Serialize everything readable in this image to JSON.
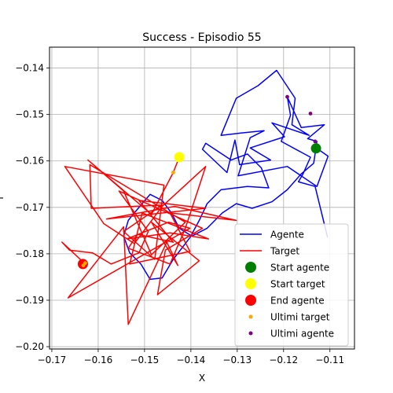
{
  "chart_data": {
    "type": "line",
    "title": "Success - Episodio 55",
    "xlabel": "X",
    "ylabel": "Y",
    "xlim": [
      -0.1705,
      -0.1047
    ],
    "ylim": [
      -0.2005,
      -0.1355
    ],
    "xticks": [
      -0.17,
      -0.16,
      -0.15,
      -0.14,
      -0.13,
      -0.12,
      -0.11
    ],
    "yticks": [
      -0.14,
      -0.15,
      -0.16,
      -0.17,
      -0.18,
      -0.19,
      -0.2
    ],
    "xtick_labels": [
      "−0.17",
      "−0.16",
      "−0.15",
      "−0.14",
      "−0.13",
      "−0.12",
      "−0.11"
    ],
    "ytick_labels": [
      "−0.14",
      "−0.15",
      "−0.16",
      "−0.17",
      "−0.18",
      "−0.19",
      "−0.20"
    ],
    "grid": true,
    "legend_position": "lower right",
    "series": [
      {
        "name": "Agente",
        "kind": "line",
        "color": "#0000ff",
        "points": [
          [
            -0.1128,
            -0.1573
          ],
          [
            -0.1104,
            -0.159
          ],
          [
            -0.1128,
            -0.1655
          ],
          [
            -0.1192,
            -0.1612
          ],
          [
            -0.1298,
            -0.1632
          ],
          [
            -0.1272,
            -0.155
          ],
          [
            -0.1242,
            -0.1535
          ],
          [
            -0.1292,
            -0.154
          ],
          [
            -0.1335,
            -0.1545
          ],
          [
            -0.1302,
            -0.1465
          ],
          [
            -0.1255,
            -0.1438
          ],
          [
            -0.1215,
            -0.1405
          ],
          [
            -0.1175,
            -0.1465
          ],
          [
            -0.1182,
            -0.1522
          ],
          [
            -0.1145,
            -0.1545
          ],
          [
            -0.1225,
            -0.1518
          ],
          [
            -0.1198,
            -0.1548
          ],
          [
            -0.1272,
            -0.1572
          ],
          [
            -0.1228,
            -0.1598
          ],
          [
            -0.1295,
            -0.1608
          ],
          [
            -0.1305,
            -0.1555
          ],
          [
            -0.1322,
            -0.1625
          ],
          [
            -0.1375,
            -0.1575
          ],
          [
            -0.1368,
            -0.1562
          ],
          [
            -0.1313,
            -0.1598
          ],
          [
            -0.1278,
            -0.1585
          ],
          [
            -0.1248,
            -0.1615
          ],
          [
            -0.1232,
            -0.1658
          ],
          [
            -0.1278,
            -0.1655
          ],
          [
            -0.1335,
            -0.1662
          ],
          [
            -0.1365,
            -0.1692
          ],
          [
            -0.1382,
            -0.1728
          ],
          [
            -0.1402,
            -0.1765
          ],
          [
            -0.1438,
            -0.1812
          ],
          [
            -0.1462,
            -0.1852
          ],
          [
            -0.1488,
            -0.1855
          ],
          [
            -0.1508,
            -0.1822
          ],
          [
            -0.1532,
            -0.1798
          ],
          [
            -0.1545,
            -0.1762
          ],
          [
            -0.1535,
            -0.1728
          ],
          [
            -0.1522,
            -0.1712
          ],
          [
            -0.1505,
            -0.1692
          ],
          [
            -0.1488,
            -0.1672
          ],
          [
            -0.1462,
            -0.1685
          ],
          [
            -0.1442,
            -0.1712
          ],
          [
            -0.1425,
            -0.1745
          ],
          [
            -0.1398,
            -0.1762
          ],
          [
            -0.1365,
            -0.1745
          ],
          [
            -0.1332,
            -0.1712
          ],
          [
            -0.1302,
            -0.1692
          ],
          [
            -0.1268,
            -0.1702
          ],
          [
            -0.1225,
            -0.1688
          ],
          [
            -0.1192,
            -0.1662
          ],
          [
            -0.1162,
            -0.1628
          ],
          [
            -0.1135,
            -0.1605
          ],
          [
            -0.1128,
            -0.1558
          ],
          [
            -0.1148,
            -0.1552
          ],
          [
            -0.1112,
            -0.1522
          ],
          [
            -0.1162,
            -0.1528
          ],
          [
            -0.1192,
            -0.1462
          ],
          [
            -0.1185,
            -0.1502
          ],
          [
            -0.1205,
            -0.1558
          ],
          [
            -0.1142,
            -0.1592
          ],
          [
            -0.1158,
            -0.1628
          ],
          [
            -0.1168,
            -0.1645
          ],
          [
            -0.1132,
            -0.1655
          ],
          [
            -0.1105,
            -0.1765
          ]
        ]
      },
      {
        "name": "Target",
        "kind": "line",
        "color": "#ff0000",
        "points": [
          [
            -0.1425,
            -0.1592
          ],
          [
            -0.1438,
            -0.1625
          ],
          [
            -0.1485,
            -0.1715
          ],
          [
            -0.1622,
            -0.1598
          ],
          [
            -0.1545,
            -0.1665
          ],
          [
            -0.1485,
            -0.1802
          ],
          [
            -0.1412,
            -0.1732
          ],
          [
            -0.1618,
            -0.1608
          ],
          [
            -0.1615,
            -0.1702
          ],
          [
            -0.1462,
            -0.1695
          ],
          [
            -0.1545,
            -0.1752
          ],
          [
            -0.1478,
            -0.1812
          ],
          [
            -0.1458,
            -0.1652
          ],
          [
            -0.1672,
            -0.1612
          ],
          [
            -0.1588,
            -0.1735
          ],
          [
            -0.1522,
            -0.1778
          ],
          [
            -0.1462,
            -0.1698
          ],
          [
            -0.1368,
            -0.1612
          ],
          [
            -0.1412,
            -0.1745
          ],
          [
            -0.1445,
            -0.1822
          ],
          [
            -0.1535,
            -0.1788
          ],
          [
            -0.1515,
            -0.1758
          ],
          [
            -0.1438,
            -0.1775
          ],
          [
            -0.1512,
            -0.1685
          ],
          [
            -0.1368,
            -0.1702
          ],
          [
            -0.1582,
            -0.1725
          ],
          [
            -0.1435,
            -0.1698
          ],
          [
            -0.1302,
            -0.1728
          ],
          [
            -0.1445,
            -0.1712
          ],
          [
            -0.1402,
            -0.1795
          ],
          [
            -0.1532,
            -0.1822
          ],
          [
            -0.1505,
            -0.1712
          ],
          [
            -0.1362,
            -0.1768
          ],
          [
            -0.1445,
            -0.1755
          ],
          [
            -0.1538,
            -0.1768
          ],
          [
            -0.1448,
            -0.1732
          ],
          [
            -0.1402,
            -0.1745
          ],
          [
            -0.1665,
            -0.1895
          ],
          [
            -0.1545,
            -0.1742
          ],
          [
            -0.1535,
            -0.1952
          ],
          [
            -0.1452,
            -0.1775
          ],
          [
            -0.1428,
            -0.1825
          ],
          [
            -0.1485,
            -0.1732
          ],
          [
            -0.1382,
            -0.1815
          ],
          [
            -0.1472,
            -0.1888
          ],
          [
            -0.1455,
            -0.1792
          ],
          [
            -0.1375,
            -0.1745
          ],
          [
            -0.1555,
            -0.1665
          ],
          [
            -0.1492,
            -0.1752
          ],
          [
            -0.1512,
            -0.1798
          ],
          [
            -0.1572,
            -0.1822
          ],
          [
            -0.1612,
            -0.1798
          ],
          [
            -0.1662,
            -0.1792
          ],
          [
            -0.1678,
            -0.1775
          ],
          [
            -0.1628,
            -0.1822
          ]
        ]
      }
    ],
    "markers": [
      {
        "name": "Start agente",
        "x": -0.113,
        "y": -0.1573,
        "color": "#008000",
        "size": "large"
      },
      {
        "name": "Start target",
        "x": -0.1425,
        "y": -0.1592,
        "color": "#ffff00",
        "size": "large"
      },
      {
        "name": "End agente",
        "x": -0.1633,
        "y": -0.1822,
        "color": "#ff0000",
        "size": "large"
      }
    ],
    "recent_points": [
      {
        "name": "Ultimi target",
        "color": "#ffa500",
        "points": [
          [
            -0.1438,
            -0.1625
          ],
          [
            -0.1632,
            -0.1825
          ],
          [
            -0.1628,
            -0.182
          ]
        ]
      },
      {
        "name": "Ultimi agente",
        "color": "#800080",
        "points": [
          [
            -0.1192,
            -0.1462
          ],
          [
            -0.1142,
            -0.1498
          ],
          [
            -0.1132,
            -0.1558
          ]
        ]
      }
    ],
    "legend": [
      {
        "label": "Agente",
        "kind": "line",
        "color": "#0000ff"
      },
      {
        "label": "Target",
        "kind": "line",
        "color": "#ff0000"
      },
      {
        "label": "Start agente",
        "kind": "big-dot",
        "color": "#008000"
      },
      {
        "label": "Start target",
        "kind": "big-dot",
        "color": "#ffff00"
      },
      {
        "label": "End agente",
        "kind": "big-dot",
        "color": "#ff0000"
      },
      {
        "label": "Ultimi target",
        "kind": "small-dot",
        "color": "#ffa500"
      },
      {
        "label": "Ultimi agente",
        "kind": "small-dot",
        "color": "#800080"
      }
    ]
  }
}
